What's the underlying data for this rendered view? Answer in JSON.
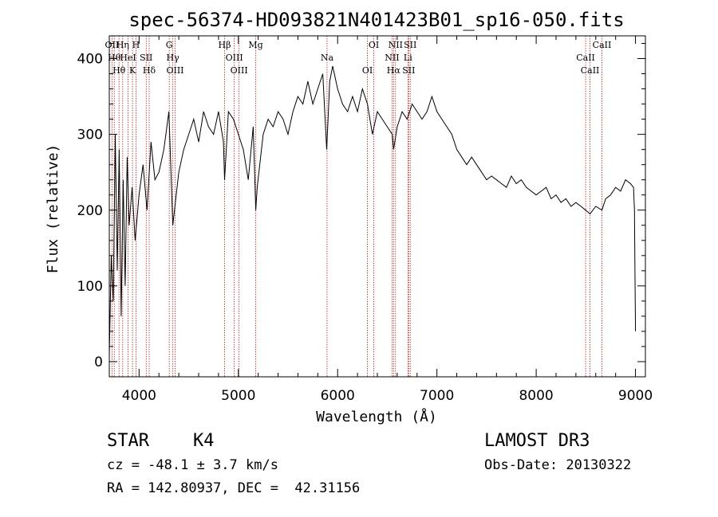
{
  "chart_data": {
    "type": "line",
    "title": "spec-56374-HD093821N401423B01_sp16-050.fits",
    "xlabel": "Wavelength (Å)",
    "ylabel": "Flux (relative)",
    "xlim": [
      3700,
      9100
    ],
    "ylim": [
      -20,
      430
    ],
    "xticks": [
      4000,
      5000,
      6000,
      7000,
      8000,
      9000
    ],
    "yticks": [
      0,
      100,
      200,
      300,
      400
    ],
    "series": [
      {
        "name": "flux",
        "x": [
          3700,
          3720,
          3740,
          3760,
          3780,
          3800,
          3820,
          3840,
          3860,
          3880,
          3900,
          3930,
          3960,
          4000,
          4040,
          4080,
          4120,
          4160,
          4200,
          4250,
          4300,
          4340,
          4400,
          4450,
          4500,
          4550,
          4600,
          4650,
          4700,
          4750,
          4800,
          4850,
          4861,
          4900,
          4950,
          5000,
          5050,
          5100,
          5150,
          5175,
          5190,
          5250,
          5300,
          5350,
          5400,
          5450,
          5500,
          5550,
          5600,
          5650,
          5700,
          5750,
          5800,
          5850,
          5890,
          5920,
          5950,
          6000,
          6050,
          6100,
          6150,
          6200,
          6250,
          6300,
          6350,
          6400,
          6450,
          6500,
          6550,
          6563,
          6600,
          6650,
          6700,
          6750,
          6800,
          6850,
          6900,
          6950,
          7000,
          7050,
          7100,
          7150,
          7200,
          7250,
          7300,
          7350,
          7400,
          7450,
          7500,
          7550,
          7600,
          7650,
          7700,
          7750,
          7800,
          7850,
          7900,
          7950,
          8000,
          8050,
          8100,
          8150,
          8200,
          8250,
          8300,
          8350,
          8400,
          8450,
          8498,
          8542,
          8600,
          8662,
          8700,
          8750,
          8800,
          8850,
          8900,
          8950,
          8980,
          8990,
          8995,
          9000
        ],
        "y": [
          10,
          140,
          80,
          300,
          120,
          280,
          60,
          240,
          100,
          270,
          180,
          230,
          160,
          220,
          260,
          200,
          290,
          240,
          250,
          280,
          330,
          180,
          250,
          280,
          300,
          320,
          290,
          330,
          310,
          300,
          330,
          290,
          240,
          330,
          320,
          300,
          280,
          240,
          310,
          200,
          230,
          300,
          320,
          310,
          330,
          320,
          300,
          330,
          350,
          340,
          370,
          340,
          360,
          380,
          280,
          370,
          390,
          360,
          340,
          330,
          350,
          330,
          360,
          340,
          300,
          330,
          320,
          310,
          300,
          280,
          310,
          330,
          320,
          340,
          330,
          320,
          330,
          350,
          330,
          320,
          310,
          300,
          280,
          270,
          260,
          270,
          260,
          250,
          240,
          245,
          240,
          235,
          230,
          245,
          235,
          240,
          230,
          225,
          220,
          225,
          230,
          215,
          220,
          210,
          215,
          205,
          210,
          205,
          200,
          195,
          205,
          200,
          215,
          220,
          230,
          225,
          240,
          235,
          230,
          200,
          120,
          40
        ]
      }
    ],
    "lines": [
      {
        "wl": 3727,
        "label": "OII"
      },
      {
        "wl": 3750,
        "label": "Hθ"
      },
      {
        "wl": 3798,
        "label": "Hθ"
      },
      {
        "wl": 3835,
        "label": "Hη"
      },
      {
        "wl": 3889,
        "label": "HeI"
      },
      {
        "wl": 3934,
        "label": "K"
      },
      {
        "wl": 3969,
        "label": "H"
      },
      {
        "wl": 4072,
        "label": "SII"
      },
      {
        "wl": 4102,
        "label": "Hδ"
      },
      {
        "wl": 4304,
        "label": "G"
      },
      {
        "wl": 4340,
        "label": "Hγ"
      },
      {
        "wl": 4363,
        "label": "OIII"
      },
      {
        "wl": 4861,
        "label": "Hβ"
      },
      {
        "wl": 4959,
        "label": "OIII"
      },
      {
        "wl": 5007,
        "label": "OIII"
      },
      {
        "wl": 5175,
        "label": "Mg"
      },
      {
        "wl": 5893,
        "label": "Na"
      },
      {
        "wl": 6300,
        "label": "OI"
      },
      {
        "wl": 6364,
        "label": "OI"
      },
      {
        "wl": 6548,
        "label": "NII"
      },
      {
        "wl": 6563,
        "label": "Hα"
      },
      {
        "wl": 6583,
        "label": "NII"
      },
      {
        "wl": 6708,
        "label": "Li"
      },
      {
        "wl": 6716,
        "label": "SII"
      },
      {
        "wl": 6731,
        "label": "SII"
      },
      {
        "wl": 8498,
        "label": "CaII"
      },
      {
        "wl": 8542,
        "label": "CaII"
      },
      {
        "wl": 8662,
        "label": "CaII"
      }
    ]
  },
  "info": {
    "class": "STAR",
    "subclass": "K4",
    "cz": "cz = -48.1 ± 3.7 km/s",
    "radec": "RA = 142.80937, DEC =  42.31156",
    "survey": "LAMOST DR3",
    "obsdate": "Obs-Date: 20130322"
  },
  "colors": {
    "line_marker": "#b22222",
    "spectrum": "#000000"
  }
}
